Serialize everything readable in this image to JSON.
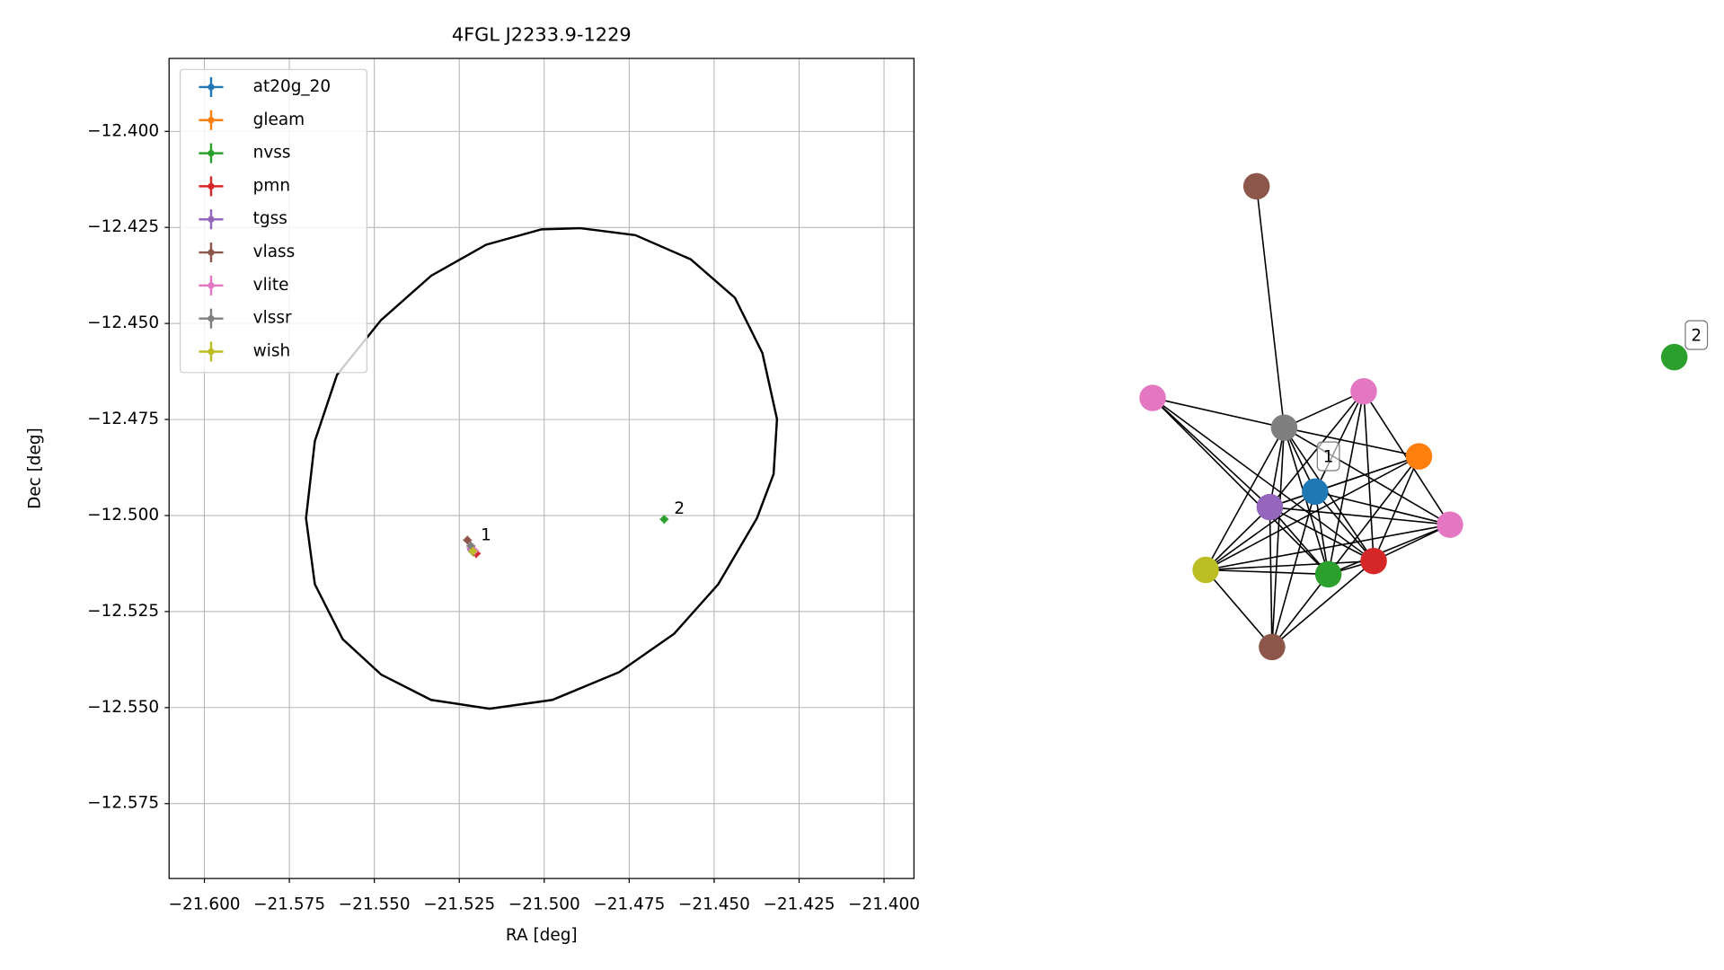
{
  "chart_data": [
    {
      "type": "scatter",
      "title": "4FGL J2233.9-1229",
      "xlabel": "RA [deg]",
      "ylabel": "Dec [deg]",
      "xlim": [
        -21.6104,
        -21.3912
      ],
      "ylim": [
        -12.5945,
        -12.381
      ],
      "grid": true,
      "legend": "upper left",
      "xticks": [
        {
          "value": -21.6,
          "label": "−21.600"
        },
        {
          "value": -21.575,
          "label": "−21.575"
        },
        {
          "value": -21.55,
          "label": "−21.550"
        },
        {
          "value": -21.525,
          "label": "−21.525"
        },
        {
          "value": -21.5,
          "label": "−21.500"
        },
        {
          "value": -21.475,
          "label": "−21.475"
        },
        {
          "value": -21.45,
          "label": "−21.450"
        },
        {
          "value": -21.425,
          "label": "−21.425"
        },
        {
          "value": -21.4,
          "label": "−21.400"
        }
      ],
      "yticks": [
        {
          "value": -12.4,
          "label": "−12.400"
        },
        {
          "value": -12.425,
          "label": "−12.425"
        },
        {
          "value": -12.45,
          "label": "−12.450"
        },
        {
          "value": -12.475,
          "label": "−12.475"
        },
        {
          "value": -12.5,
          "label": "−12.500"
        },
        {
          "value": -12.525,
          "label": "−12.525"
        },
        {
          "value": -12.55,
          "label": "−12.550"
        },
        {
          "value": -12.575,
          "label": "−12.575"
        }
      ],
      "series": [
        {
          "name": "at20g_20",
          "color": "#1f77b4",
          "x": [
            -21.5212
          ],
          "y": [
            -12.5091
          ]
        },
        {
          "name": "gleam",
          "color": "#ff7f0e",
          "x": [
            -21.5208
          ],
          "y": [
            -12.5095
          ]
        },
        {
          "name": "nvss",
          "color": "#2ca02c",
          "x": [
            -21.521,
            -21.4647
          ],
          "y": [
            -12.5094,
            -12.501
          ]
        },
        {
          "name": "pmn",
          "color": "#d62728",
          "x": [
            -21.52
          ],
          "y": [
            -12.5099
          ]
        },
        {
          "name": "tgss",
          "color": "#9467bd",
          "x": [
            -21.5214
          ],
          "y": [
            -12.5088
          ]
        },
        {
          "name": "vlass",
          "color": "#8c564b",
          "x": [
            -21.5226
          ],
          "y": [
            -12.5064
          ]
        },
        {
          "name": "vlite",
          "color": "#e377c2",
          "x": [
            -21.5215,
            -21.5205
          ],
          "y": [
            -12.5085,
            -12.5092
          ]
        },
        {
          "name": "vlssr",
          "color": "#7f7f7f",
          "x": [
            -21.5216
          ],
          "y": [
            -12.5079
          ]
        },
        {
          "name": "wish",
          "color": "#bcbd22",
          "x": [
            -21.521
          ],
          "y": [
            -12.5093
          ]
        }
      ],
      "ellipse": {
        "color": "#000000",
        "x": [
          -21.4894,
          -21.4732,
          -21.4569,
          -21.4439,
          -21.4358,
          -21.4315,
          -21.4325,
          -21.4374,
          -21.4488,
          -21.4618,
          -21.478,
          -21.4976,
          -21.5161,
          -21.5333,
          -21.548,
          -21.5593,
          -21.5675,
          -21.5701,
          -21.5675,
          -21.561,
          -21.548,
          -21.5333,
          -21.5171,
          -21.5008,
          -21.4894
        ],
        "y": [
          -12.4252,
          -12.427,
          -12.4333,
          -12.4433,
          -12.4577,
          -12.4749,
          -12.4892,
          -12.5007,
          -12.5179,
          -12.5308,
          -12.5408,
          -12.548,
          -12.5503,
          -12.548,
          -12.5414,
          -12.5322,
          -12.5179,
          -12.5007,
          -12.4806,
          -12.4634,
          -12.4491,
          -12.4376,
          -12.4295,
          -12.4255,
          -12.4252
        ]
      },
      "annotations": [
        {
          "text": "1",
          "x": -21.5216,
          "y": -12.5079
        },
        {
          "text": "2",
          "x": -21.4647,
          "y": -12.501
        }
      ]
    },
    {
      "type": "network",
      "nodes": [
        {
          "color": "#8c564b"
        },
        {
          "color": "#e377c2"
        },
        {
          "color": "#7f7f7f"
        },
        {
          "color": "#e377c2"
        },
        {
          "color": "#ff7f0e"
        },
        {
          "color": "#1f77b4",
          "label": "1"
        },
        {
          "color": "#9467bd"
        },
        {
          "color": "#e377c2"
        },
        {
          "color": "#bcbd22"
        },
        {
          "color": "#2ca02c"
        },
        {
          "color": "#d62728"
        },
        {
          "color": "#8c564b"
        },
        {
          "color": "#2ca02c",
          "label": "2"
        }
      ],
      "edges": [
        [
          0,
          2
        ],
        [
          1,
          2
        ],
        [
          1,
          6
        ],
        [
          1,
          9
        ],
        [
          1,
          10
        ],
        [
          2,
          3
        ],
        [
          2,
          4
        ],
        [
          2,
          5
        ],
        [
          2,
          6
        ],
        [
          2,
          7
        ],
        [
          2,
          8
        ],
        [
          2,
          9
        ],
        [
          2,
          10
        ],
        [
          2,
          11
        ],
        [
          3,
          5
        ],
        [
          3,
          6
        ],
        [
          3,
          9
        ],
        [
          3,
          10
        ],
        [
          3,
          7
        ],
        [
          4,
          5
        ],
        [
          4,
          6
        ],
        [
          4,
          8
        ],
        [
          4,
          9
        ],
        [
          4,
          10
        ],
        [
          5,
          6
        ],
        [
          5,
          7
        ],
        [
          5,
          8
        ],
        [
          5,
          9
        ],
        [
          5,
          10
        ],
        [
          5,
          11
        ],
        [
          6,
          7
        ],
        [
          6,
          8
        ],
        [
          6,
          9
        ],
        [
          6,
          10
        ],
        [
          6,
          11
        ],
        [
          7,
          9
        ],
        [
          7,
          10
        ],
        [
          7,
          8
        ],
        [
          8,
          9
        ],
        [
          8,
          10
        ],
        [
          8,
          11
        ],
        [
          9,
          10
        ],
        [
          9,
          11
        ],
        [
          10,
          11
        ]
      ]
    }
  ]
}
